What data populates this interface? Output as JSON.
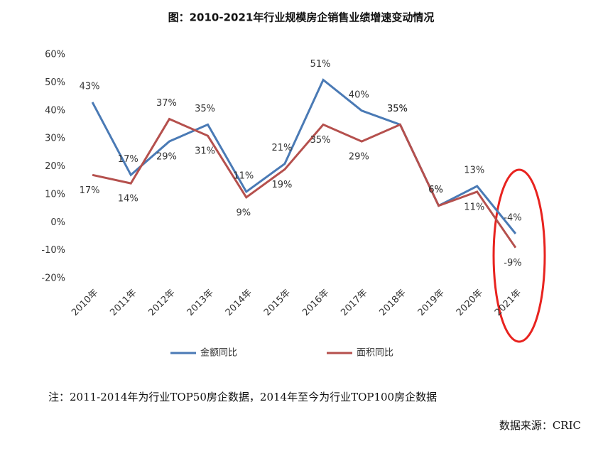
{
  "chart_data": {
    "type": "line",
    "title": "图：2010-2021年行业规模房企销售业绩增速变动情况",
    "categories": [
      "2010年",
      "2011年",
      "2012年",
      "2013年",
      "2014年",
      "2015年",
      "2016年",
      "2017年",
      "2018年",
      "2019年",
      "2020年",
      "2021年"
    ],
    "series": [
      {
        "name": "金额同比",
        "color": "#4a7ab5",
        "values": [
          43,
          17,
          29,
          35,
          11,
          21,
          51,
          40,
          35,
          6,
          13,
          -4
        ],
        "value_labels": [
          "43%",
          "17%",
          "29%",
          "35%",
          "11%",
          "21%",
          "51%",
          "40%",
          "35%",
          "6%",
          "13%",
          "-4%"
        ]
      },
      {
        "name": "面积同比",
        "color": "#b5504d",
        "values": [
          17,
          14,
          37,
          31,
          9,
          19,
          35,
          29,
          35,
          6,
          11,
          -9
        ],
        "value_labels": [
          "17%",
          "14%",
          "37%",
          "31%",
          "9%",
          "19%",
          "35%",
          "29%",
          "35%",
          "6%",
          "11%",
          "-9%"
        ]
      }
    ],
    "ylim": [
      -20,
      60
    ],
    "yticks": [
      {
        "value": -20,
        "label": "-20%"
      },
      {
        "value": -10,
        "label": "-10%"
      },
      {
        "value": 0,
        "label": "0%"
      },
      {
        "value": 10,
        "label": "10%"
      },
      {
        "value": 20,
        "label": "20%"
      },
      {
        "value": 30,
        "label": "30%"
      },
      {
        "value": 40,
        "label": "40%"
      },
      {
        "value": 50,
        "label": "50%"
      },
      {
        "value": 60,
        "label": "60%"
      }
    ],
    "grid": false,
    "legend": "bottom",
    "note": "注：2011-2014年为行业TOP50房企数据，2014年至今为行业TOP100房企数据",
    "source": "数据来源：CRIC"
  }
}
